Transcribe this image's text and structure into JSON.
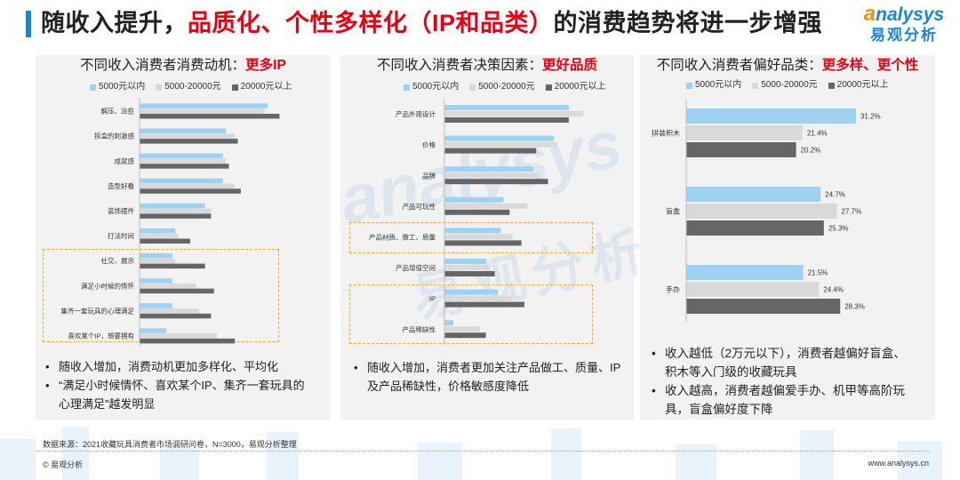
{
  "title": {
    "part1": "随收入提升，",
    "part2": "品质化、个性多样化（IP和品类）",
    "part3": "的消费趋势将进一步增强"
  },
  "logo": {
    "first": "a",
    "rest": "nalysys",
    "cn": "易观分析"
  },
  "colors": {
    "accent": "#e60012",
    "brand": "#1a86d8",
    "highlight_box": "#f5a623",
    "series": [
      "#9dd2f2",
      "#d9d9d9",
      "#666666"
    ]
  },
  "panels": [
    {
      "title": "不同收入消费者消费动机：",
      "highlight": "更多IP",
      "bullets": [
        "随收入增加，消费动机更加多样化、平均化",
        "“满足小时候情怀、喜欢某个IP、集齐一套玩具的心理满足”越发明显"
      ]
    },
    {
      "title": "不同收入消费者决策因素：",
      "highlight": "更好品质",
      "bullets": [
        "随收入增加，消费者更加关注产品做工、质量、IP及产品稀缺性，价格敏感度降低"
      ]
    },
    {
      "title": "不同收入消费者偏好品类：",
      "highlight": "更多样、更个性",
      "bullets": [
        "收入越低（2万元以下），消费者越偏好盲盒、积木等入门级的收藏玩具",
        "收入越高，消费者越偏爱手办、机甲等高阶玩具，盲盒偏好度下降"
      ]
    }
  ],
  "bullet_symbol": "•",
  "watermark": {
    "en": "analysys",
    "cn": "易观分析"
  },
  "footer": {
    "source": "数据来源：2021收藏玩具消费者市场调研问卷，N=3000，易观分析整理",
    "copyright": "© 易观分析",
    "url": "www.analysys.cn"
  },
  "chart_data": [
    {
      "type": "bar",
      "orientation": "horizontal",
      "legend": "top",
      "grid": false,
      "categories": [
        "解压、治愈",
        "拆盒的刺激感",
        "成就感",
        "造型好看",
        "装饰摆件",
        "打法时间",
        "社交、展示",
        "满足小时候的情怀",
        "集齐一套玩具的心理满足",
        "喜欢某个IP，想要拥有"
      ],
      "series": [
        {
          "name": "5000元以内",
          "values": [
            43,
            29,
            28,
            28,
            22,
            12,
            11,
            11,
            11,
            9
          ]
        },
        {
          "name": "5000-20000元",
          "values": [
            42,
            32,
            29,
            32,
            24,
            13,
            12,
            19,
            20,
            26
          ]
        },
        {
          "name": "20000元以上",
          "values": [
            47,
            33,
            30,
            34,
            24,
            17,
            22,
            25,
            24,
            32
          ]
        }
      ]
    },
    {
      "type": "bar",
      "orientation": "horizontal",
      "legend": "top",
      "grid": false,
      "categories": [
        "产品外观设计",
        "价格",
        "品牌",
        "产品可玩性",
        "产品材质、做工、质量",
        "产品增值空间",
        "IP",
        "产品稀缺性"
      ],
      "series": [
        {
          "name": "5000元以内",
          "values": [
            42,
            37,
            30,
            20,
            19,
            14,
            18,
            3
          ]
        },
        {
          "name": "5000-20000元",
          "values": [
            47,
            38,
            32,
            28,
            23,
            15,
            23,
            12
          ]
        },
        {
          "name": "20000元以上",
          "values": [
            42,
            31,
            35,
            22,
            26,
            17,
            27,
            14
          ]
        }
      ]
    },
    {
      "type": "bar",
      "orientation": "horizontal",
      "legend": "top",
      "grid": false,
      "value_suffix": "%",
      "categories": [
        "拼装积木",
        "盲盒",
        "手办"
      ],
      "series": [
        {
          "name": "5000元以内",
          "values": [
            31.2,
            24.7,
            21.5
          ]
        },
        {
          "name": "5000-20000元",
          "values": [
            21.4,
            27.7,
            24.4
          ]
        },
        {
          "name": "20000元以上",
          "values": [
            20.2,
            25.3,
            28.3
          ]
        }
      ]
    }
  ]
}
